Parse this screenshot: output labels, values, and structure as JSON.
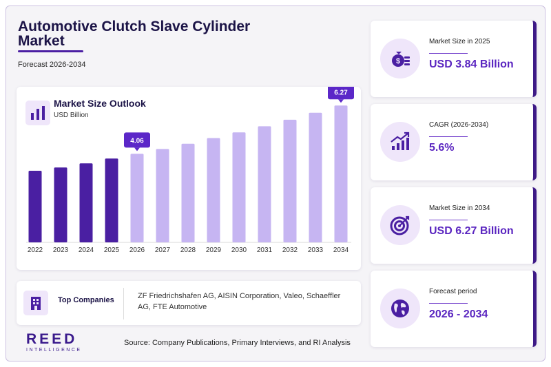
{
  "header": {
    "title": "Automotive Clutch Slave Cylinder Market",
    "subtitle": "Forecast 2026-2034"
  },
  "chart_data": {
    "type": "bar",
    "title": "Market Size Outlook",
    "unit": "USD Billion",
    "categories": [
      "2022",
      "2023",
      "2024",
      "2025",
      "2026",
      "2027",
      "2028",
      "2029",
      "2030",
      "2031",
      "2032",
      "2033",
      "2034"
    ],
    "values": [
      3.28,
      3.43,
      3.62,
      3.84,
      4.06,
      4.28,
      4.52,
      4.78,
      5.04,
      5.32,
      5.62,
      5.94,
      6.27
    ],
    "callouts": [
      {
        "category": "2026",
        "label": "4.06"
      },
      {
        "category": "2034",
        "label": "6.27"
      }
    ],
    "ylim": [
      0,
      6.5
    ],
    "colors": {
      "historic": "#4a1fa2",
      "forecast": "#c6b5f2",
      "callout": "#5b27c8"
    }
  },
  "companies": {
    "label": "Top Companies",
    "text": "ZF Friedrichshafen AG, AISIN Corporation, Valeo, Schaeffler AG, FTE Automotive"
  },
  "kpis": [
    {
      "label": "Market Size in 2025",
      "value": "USD 3.84 Billion",
      "icon": "money-bag-icon"
    },
    {
      "label": "CAGR (2026-2034)",
      "value": "5.6%",
      "icon": "growth-chart-icon"
    },
    {
      "label": "Market Size in 2034",
      "value": "USD 6.27 Billion",
      "icon": "target-icon"
    },
    {
      "label": "Forecast period",
      "value": "2026 - 2034",
      "icon": "globe-icon"
    }
  ],
  "logo": {
    "main": "REED",
    "sub": "INTELLIGENCE"
  },
  "source": "Source: Company Publications, Primary Interviews, and RI Analysis"
}
